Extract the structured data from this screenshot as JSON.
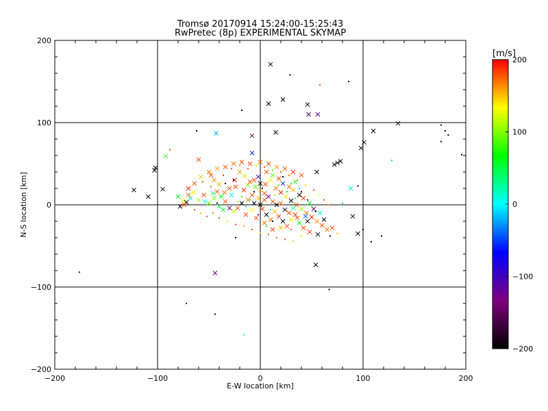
{
  "chart_data": {
    "type": "scatter",
    "title": "Tromsø 20170914 15:24:00-15:25:43",
    "subtitle": "RwPretec (8p) EXPERIMENTAL SKYMAP",
    "xlabel": "E-W location [km]",
    "ylabel": "N-S location [km]",
    "xlim": [
      -200,
      200
    ],
    "ylim": [
      -200,
      200
    ],
    "x_ticks": [
      -200,
      -100,
      0,
      100,
      200
    ],
    "y_ticks": [
      -200,
      -100,
      0,
      100,
      200
    ],
    "grid": true,
    "colorbar": {
      "label": "[m/s]",
      "range": [
        -200,
        200
      ],
      "ticks": [
        200,
        100,
        0,
        -100,
        -200
      ],
      "colormap": [
        "#000000",
        "#800080",
        "#0000ff",
        "#00ffff",
        "#00ff00",
        "#ffff00",
        "#ff0000"
      ]
    },
    "markers": [
      "x",
      "dot"
    ],
    "points": [
      [
        10,
        171,
        -200,
        "x"
      ],
      [
        29,
        158,
        -200,
        "dot"
      ],
      [
        86,
        150,
        -200,
        "dot"
      ],
      [
        58,
        146,
        180,
        "dot"
      ],
      [
        22,
        128,
        -200,
        "x"
      ],
      [
        8,
        123,
        -200,
        "x"
      ],
      [
        46,
        122,
        -180,
        "x"
      ],
      [
        -18,
        115,
        -200,
        "dot"
      ],
      [
        47,
        110,
        -160,
        "x"
      ],
      [
        56,
        110,
        -110,
        "x"
      ],
      [
        134,
        99,
        -200,
        "x"
      ],
      [
        176,
        97,
        -200,
        "dot"
      ],
      [
        -62,
        90,
        -200,
        "dot"
      ],
      [
        15,
        88,
        -200,
        "x"
      ],
      [
        -43,
        87,
        -20,
        "x"
      ],
      [
        -8,
        84,
        -150,
        "x"
      ],
      [
        110,
        90,
        -200,
        "x"
      ],
      [
        180,
        90,
        -200,
        "dot"
      ],
      [
        183,
        85,
        -200,
        "dot"
      ],
      [
        176,
        77,
        -200,
        "dot"
      ],
      [
        101,
        76,
        -200,
        "x"
      ],
      [
        98,
        69,
        -200,
        "x"
      ],
      [
        -88,
        67,
        180,
        "dot"
      ],
      [
        -8,
        63,
        -60,
        "x"
      ],
      [
        -92,
        59,
        80,
        "x"
      ],
      [
        128,
        54,
        60,
        "dot"
      ],
      [
        196,
        61,
        -200,
        "dot"
      ],
      [
        -102,
        45,
        -200,
        "x"
      ],
      [
        -103,
        42,
        -200,
        "x"
      ],
      [
        -123,
        18,
        -200,
        "x"
      ],
      [
        -95,
        19,
        -200,
        "x"
      ],
      [
        -109,
        10,
        -200,
        "x"
      ],
      [
        72,
        49,
        -200,
        "x"
      ],
      [
        75,
        51,
        -200,
        "x"
      ],
      [
        78,
        53,
        -200,
        "x"
      ],
      [
        55,
        40,
        -200,
        "x"
      ],
      [
        88,
        20,
        20,
        "x"
      ],
      [
        95,
        23,
        -200,
        "dot"
      ],
      [
        80,
        2,
        20,
        "dot"
      ],
      [
        90,
        -14,
        -200,
        "x"
      ],
      [
        95,
        -35,
        -200,
        "x"
      ],
      [
        100,
        -30,
        -200,
        "dot"
      ],
      [
        108,
        -45,
        -200,
        "dot"
      ],
      [
        118,
        -38,
        -200,
        "dot"
      ],
      [
        -176,
        -82,
        -110,
        "dot"
      ],
      [
        -44,
        -83,
        -140,
        "x"
      ],
      [
        54,
        -73,
        -200,
        "x"
      ],
      [
        67,
        -103,
        -200,
        "dot"
      ],
      [
        -72,
        -120,
        -120,
        "dot"
      ],
      [
        -44,
        -133,
        -200,
        "dot"
      ],
      [
        -16,
        -158,
        0,
        "dot"
      ],
      [
        -60,
        55,
        180,
        "x"
      ],
      [
        -50,
        40,
        170,
        "x"
      ],
      [
        -45,
        30,
        160,
        "x"
      ],
      [
        -40,
        25,
        150,
        "x"
      ],
      [
        -70,
        20,
        190,
        "x"
      ],
      [
        -65,
        15,
        140,
        "x"
      ],
      [
        -75,
        5,
        130,
        "x"
      ],
      [
        -80,
        10,
        60,
        "x"
      ],
      [
        -78,
        -2,
        -200,
        "x"
      ],
      [
        -72,
        3,
        -200,
        "x"
      ],
      [
        -68,
        8,
        20,
        "x"
      ],
      [
        -60,
        6,
        110,
        "x"
      ],
      [
        -55,
        12,
        180,
        "x"
      ],
      [
        -50,
        2,
        90,
        "x"
      ],
      [
        -45,
        8,
        100,
        "x"
      ],
      [
        -40,
        -2,
        40,
        "x"
      ],
      [
        -35,
        15,
        170,
        "x"
      ],
      [
        -30,
        20,
        180,
        "x"
      ],
      [
        -25,
        30,
        190,
        "x"
      ],
      [
        -20,
        40,
        160,
        "x"
      ],
      [
        -15,
        35,
        120,
        "x"
      ],
      [
        -10,
        28,
        180,
        "x"
      ],
      [
        -5,
        22,
        90,
        "x"
      ],
      [
        0,
        18,
        150,
        "x"
      ],
      [
        5,
        25,
        180,
        "x"
      ],
      [
        10,
        30,
        130,
        "x"
      ],
      [
        15,
        20,
        170,
        "x"
      ],
      [
        20,
        15,
        190,
        "x"
      ],
      [
        25,
        10,
        140,
        "x"
      ],
      [
        30,
        5,
        -200,
        "x"
      ],
      [
        35,
        0,
        180,
        "x"
      ],
      [
        40,
        -5,
        110,
        "x"
      ],
      [
        45,
        -10,
        170,
        "x"
      ],
      [
        50,
        -15,
        190,
        "x"
      ],
      [
        55,
        -20,
        160,
        "x"
      ],
      [
        60,
        -25,
        180,
        "x"
      ],
      [
        62,
        -18,
        -200,
        "x"
      ],
      [
        58,
        -10,
        20,
        "x"
      ],
      [
        52,
        -5,
        -150,
        "x"
      ],
      [
        48,
        2,
        60,
        "x"
      ],
      [
        42,
        8,
        180,
        "x"
      ],
      [
        38,
        12,
        -200,
        "x"
      ],
      [
        32,
        18,
        150,
        "x"
      ],
      [
        28,
        22,
        170,
        "x"
      ],
      [
        22,
        26,
        -60,
        "x"
      ],
      [
        18,
        32,
        180,
        "x"
      ],
      [
        12,
        36,
        90,
        "x"
      ],
      [
        6,
        40,
        180,
        "x"
      ],
      [
        -2,
        34,
        -100,
        "x"
      ],
      [
        -8,
        12,
        180,
        "x"
      ],
      [
        -12,
        6,
        170,
        "x"
      ],
      [
        -18,
        2,
        -200,
        "x"
      ],
      [
        -22,
        -4,
        180,
        "x"
      ],
      [
        -26,
        -8,
        120,
        "x"
      ],
      [
        -30,
        -4,
        -150,
        "x"
      ],
      [
        -34,
        4,
        180,
        "x"
      ],
      [
        -38,
        10,
        70,
        "x"
      ],
      [
        -42,
        16,
        180,
        "x"
      ],
      [
        2,
        -5,
        180,
        "x"
      ],
      [
        6,
        -12,
        -200,
        "x"
      ],
      [
        10,
        -18,
        170,
        "x"
      ],
      [
        14,
        -8,
        150,
        "x"
      ],
      [
        18,
        -14,
        190,
        "x"
      ],
      [
        22,
        -20,
        -200,
        "x"
      ],
      [
        26,
        -26,
        180,
        "x"
      ],
      [
        30,
        -18,
        140,
        "x"
      ],
      [
        34,
        -12,
        180,
        "x"
      ],
      [
        38,
        -22,
        60,
        "x"
      ],
      [
        42,
        -28,
        180,
        "x"
      ],
      [
        46,
        -20,
        -200,
        "x"
      ],
      [
        65,
        -30,
        170,
        "x"
      ],
      [
        70,
        -28,
        180,
        "x"
      ],
      [
        75,
        -35,
        150,
        "dot"
      ],
      [
        68,
        -38,
        -200,
        "dot"
      ],
      [
        56,
        -36,
        -200,
        "x"
      ],
      [
        48,
        -33,
        180,
        "x"
      ],
      [
        40,
        -38,
        120,
        "dot"
      ],
      [
        30,
        -30,
        180,
        "dot"
      ],
      [
        20,
        -28,
        150,
        "x"
      ],
      [
        12,
        -30,
        180,
        "x"
      ],
      [
        4,
        -22,
        170,
        "x"
      ],
      [
        -4,
        -16,
        180,
        "x"
      ],
      [
        -8,
        -6,
        130,
        "x"
      ],
      [
        -14,
        -12,
        180,
        "x"
      ],
      [
        -6,
        2,
        -200,
        "x"
      ],
      [
        0,
        0,
        -200,
        "x"
      ],
      [
        4,
        6,
        180,
        "x"
      ],
      [
        8,
        10,
        -130,
        "x"
      ],
      [
        12,
        4,
        180,
        "x"
      ],
      [
        16,
        0,
        -200,
        "x"
      ],
      [
        20,
        2,
        170,
        "x"
      ],
      [
        24,
        -6,
        -200,
        "x"
      ],
      [
        28,
        -10,
        180,
        "x"
      ],
      [
        32,
        -4,
        30,
        "x"
      ],
      [
        36,
        -16,
        180,
        "x"
      ],
      [
        44,
        -14,
        -40,
        "x"
      ],
      [
        -28,
        12,
        0,
        "x"
      ],
      [
        -24,
        22,
        180,
        "x"
      ],
      [
        -16,
        18,
        190,
        "x"
      ],
      [
        -12,
        24,
        100,
        "x"
      ],
      [
        -6,
        30,
        180,
        "x"
      ],
      [
        0,
        26,
        -200,
        "x"
      ],
      [
        4,
        14,
        180,
        "x"
      ],
      [
        -2,
        8,
        150,
        "x"
      ],
      [
        -56,
        28,
        180,
        "dot"
      ],
      [
        -48,
        22,
        170,
        "dot"
      ],
      [
        -36,
        36,
        190,
        "dot"
      ],
      [
        -28,
        44,
        180,
        "dot"
      ],
      [
        -20,
        48,
        160,
        "dot"
      ],
      [
        -12,
        44,
        180,
        "dot"
      ],
      [
        -4,
        48,
        120,
        "dot"
      ],
      [
        4,
        46,
        180,
        "dot"
      ],
      [
        12,
        42,
        90,
        "dot"
      ],
      [
        20,
        40,
        180,
        "dot"
      ],
      [
        28,
        36,
        170,
        "dot"
      ],
      [
        36,
        30,
        180,
        "dot"
      ],
      [
        44,
        24,
        150,
        "dot"
      ],
      [
        52,
        18,
        180,
        "dot"
      ],
      [
        58,
        12,
        130,
        "dot"
      ],
      [
        62,
        6,
        180,
        "dot"
      ],
      [
        66,
        0,
        160,
        "dot"
      ],
      [
        -64,
        -6,
        180,
        "dot"
      ],
      [
        -58,
        -10,
        150,
        "dot"
      ],
      [
        -52,
        -14,
        180,
        "dot"
      ],
      [
        -46,
        -10,
        170,
        "dot"
      ],
      [
        -40,
        -16,
        180,
        "dot"
      ],
      [
        -32,
        -20,
        120,
        "dot"
      ],
      [
        -24,
        -24,
        180,
        "dot"
      ],
      [
        -16,
        -26,
        160,
        "dot"
      ],
      [
        -8,
        -30,
        180,
        "dot"
      ],
      [
        0,
        -34,
        140,
        "dot"
      ],
      [
        8,
        -36,
        180,
        "dot"
      ],
      [
        16,
        -40,
        170,
        "dot"
      ],
      [
        24,
        -42,
        180,
        "dot"
      ],
      [
        32,
        -44,
        150,
        "dot"
      ],
      [
        -24,
        -40,
        -200,
        "dot"
      ],
      [
        -10,
        6,
        60,
        "dot"
      ],
      [
        -14,
        -2,
        30,
        "dot"
      ],
      [
        -18,
        10,
        80,
        "dot"
      ],
      [
        -22,
        4,
        110,
        "dot"
      ],
      [
        26,
        16,
        60,
        "dot"
      ],
      [
        30,
        26,
        40,
        "dot"
      ],
      [
        34,
        8,
        80,
        "dot"
      ],
      [
        38,
        20,
        20,
        "dot"
      ],
      [
        6,
        -26,
        60,
        "dot"
      ],
      [
        10,
        -6,
        40,
        "dot"
      ],
      [
        14,
        12,
        100,
        "dot"
      ],
      [
        18,
        24,
        80,
        "dot"
      ],
      [
        -2,
        -12,
        -120,
        "dot"
      ],
      [
        2,
        20,
        -90,
        "dot"
      ],
      [
        46,
        6,
        -60,
        "dot"
      ],
      [
        50,
        -2,
        40,
        "dot"
      ],
      [
        -34,
        26,
        -200,
        "dot"
      ],
      [
        -26,
        30,
        -200,
        "dot"
      ],
      [
        -42,
        2,
        -200,
        "dot"
      ],
      [
        22,
        34,
        -200,
        "dot"
      ],
      [
        40,
        16,
        -200,
        "dot"
      ],
      [
        54,
        -8,
        -200,
        "dot"
      ],
      [
        12,
        -20,
        -200,
        "dot"
      ],
      [
        -6,
        16,
        -200,
        "dot"
      ],
      [
        -54,
        4,
        0,
        "x"
      ],
      [
        -46,
        14,
        40,
        "x"
      ],
      [
        -36,
        -6,
        60,
        "x"
      ],
      [
        34,
        28,
        80,
        "x"
      ],
      [
        -10,
        50,
        180,
        "x"
      ],
      [
        0,
        52,
        170,
        "x"
      ],
      [
        8,
        50,
        180,
        "x"
      ],
      [
        16,
        46,
        160,
        "x"
      ],
      [
        24,
        44,
        180,
        "x"
      ],
      [
        32,
        40,
        190,
        "x"
      ],
      [
        40,
        36,
        180,
        "x"
      ],
      [
        -18,
        52,
        180,
        "x"
      ],
      [
        -26,
        50,
        170,
        "x"
      ],
      [
        -34,
        46,
        180,
        "x"
      ],
      [
        -42,
        44,
        160,
        "x"
      ],
      [
        -48,
        36,
        180,
        "x"
      ],
      [
        -58,
        34,
        150,
        "x"
      ],
      [
        -64,
        26,
        180,
        "x"
      ],
      [
        -70,
        12,
        170,
        "x"
      ],
      [
        -74,
        0,
        180,
        "x"
      ]
    ]
  }
}
